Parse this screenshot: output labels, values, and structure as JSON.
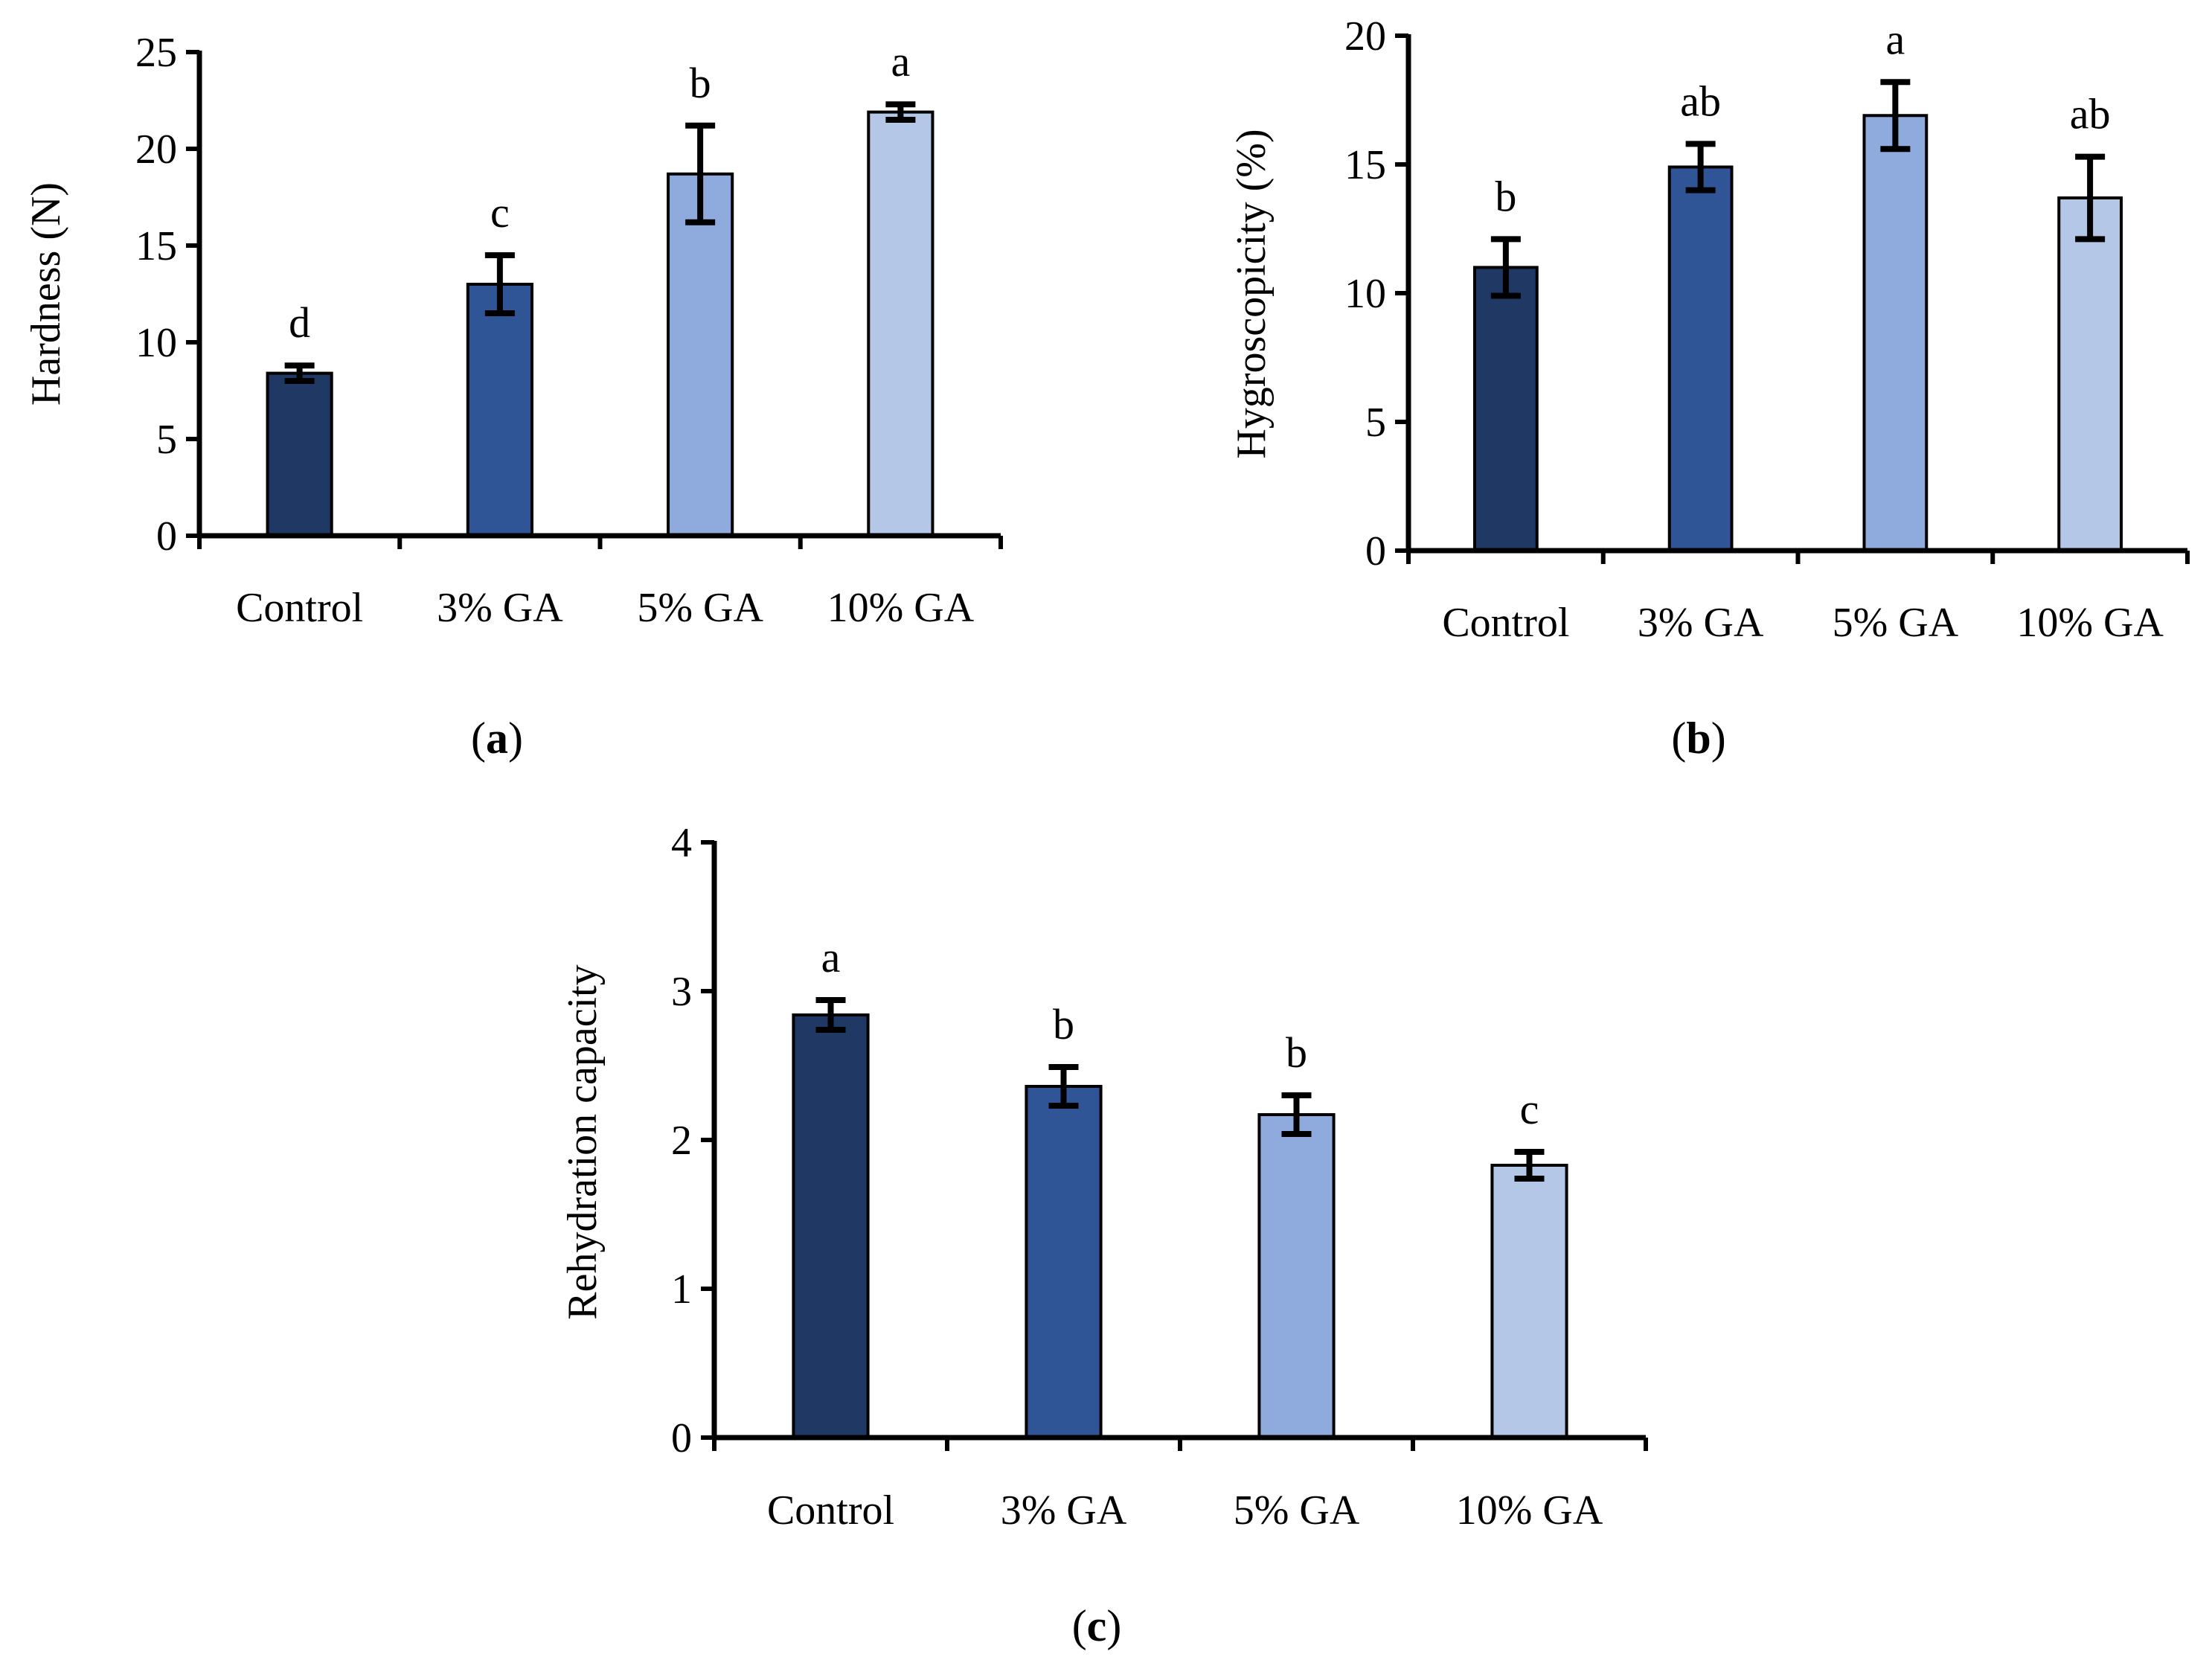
{
  "chart_data": [
    {
      "panel": "a",
      "panel_label": "(a)",
      "type": "bar",
      "title": "",
      "xlabel": "",
      "ylabel": "Hardness (N)",
      "ylim": [
        0,
        25
      ],
      "yticks": [
        0,
        5,
        10,
        15,
        20,
        25
      ],
      "ytick_labels": [
        "0",
        "5",
        "10",
        "15",
        "20",
        "25"
      ],
      "grid": false,
      "categories": [
        "Control",
        "3% GA",
        "5% GA",
        "10% GA"
      ],
      "values": [
        8.4,
        13.0,
        18.7,
        21.9
      ],
      "errors": [
        0.4,
        1.5,
        2.5,
        0.4
      ],
      "significance": [
        "d",
        "c",
        "b",
        "a"
      ],
      "bar_colors": [
        "#1f3864",
        "#2f5597",
        "#8faadc",
        "#b4c7e7"
      ]
    },
    {
      "panel": "b",
      "panel_label": "(b)",
      "type": "bar",
      "title": "",
      "xlabel": "",
      "ylabel": "Hygroscopicity (%)",
      "ylim": [
        0,
        20
      ],
      "yticks": [
        0,
        5,
        10,
        15,
        20
      ],
      "ytick_labels": [
        "0",
        "5",
        "10",
        "15",
        "20"
      ],
      "grid": false,
      "categories": [
        "Control",
        "3% GA",
        "5% GA",
        "10% GA"
      ],
      "values": [
        11.0,
        14.9,
        16.9,
        13.7
      ],
      "errors": [
        1.1,
        0.9,
        1.3,
        1.6
      ],
      "significance": [
        "b",
        "ab",
        "a",
        "ab"
      ],
      "bar_colors": [
        "#1f3864",
        "#2f5597",
        "#8faadc",
        "#b4c7e7"
      ]
    },
    {
      "panel": "c",
      "panel_label": "(c)",
      "type": "bar",
      "title": "",
      "xlabel": "",
      "ylabel": "Rehydration capacity",
      "ylim": [
        0,
        4
      ],
      "yticks": [
        0,
        1,
        2,
        3,
        4
      ],
      "ytick_labels": [
        "0",
        "1",
        "2",
        "3",
        "4"
      ],
      "grid": false,
      "categories": [
        "Control",
        "3% GA",
        "5% GA",
        "10% GA"
      ],
      "values": [
        2.84,
        2.36,
        2.17,
        1.83
      ],
      "errors": [
        0.1,
        0.13,
        0.13,
        0.09
      ],
      "significance": [
        "a",
        "b",
        "b",
        "c"
      ],
      "bar_colors": [
        "#1f3864",
        "#2f5597",
        "#8faadc",
        "#b4c7e7"
      ]
    }
  ]
}
